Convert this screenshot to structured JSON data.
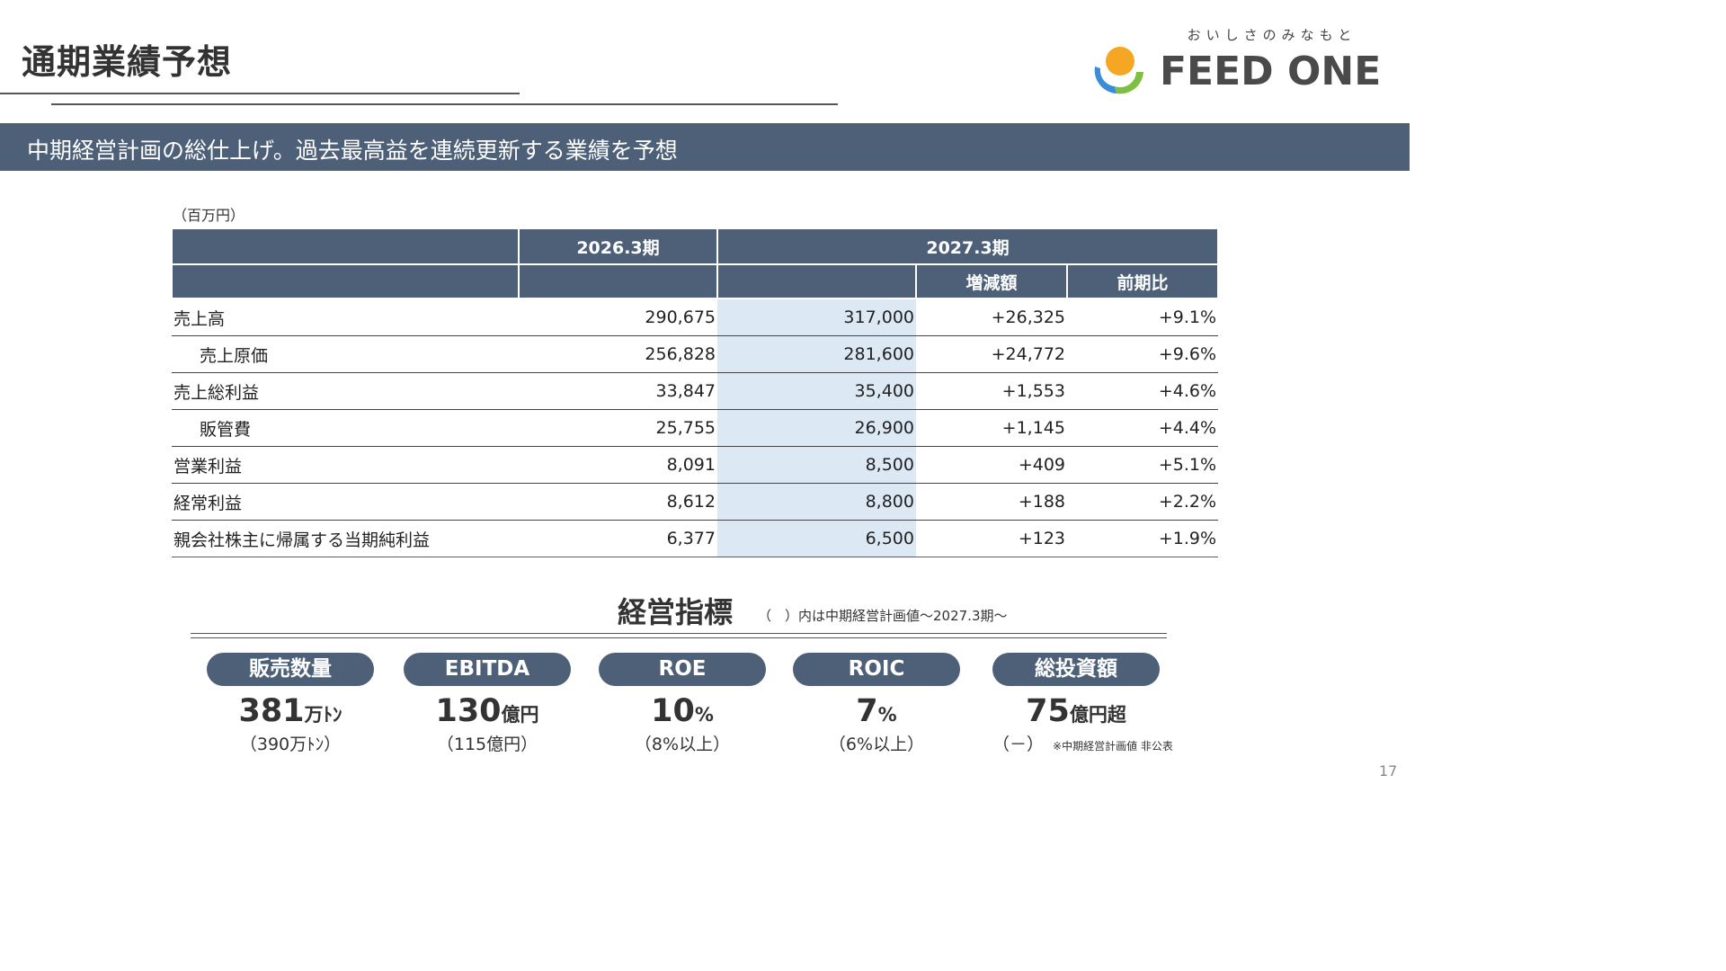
{
  "header": {
    "title": "通期業績予想",
    "logo_tagline": "おいしさのみなもと",
    "logo_name": "FEED ONE"
  },
  "banner": {
    "text": "中期経営計画の総仕上げ。過去最高益を連続更新する業績を予想"
  },
  "table": {
    "unit": "（百万円）",
    "columns": {
      "fy2026": "2026.3期",
      "fy2027": "2027.3期",
      "change": "増減額",
      "ratio": "前期比"
    },
    "rows": [
      {
        "label": "売上高",
        "fy2026": "290,675",
        "fy2027": "317,000",
        "change": "+26,325",
        "ratio": "+9.1%"
      },
      {
        "label": "売上原価",
        "fy2026": "256,828",
        "fy2027": "281,600",
        "change": "+24,772",
        "ratio": "+9.6%"
      },
      {
        "label": "売上総利益",
        "fy2026": "33,847",
        "fy2027": "35,400",
        "change": "+1,553",
        "ratio": "+4.6%"
      },
      {
        "label": "販管費",
        "fy2026": "25,755",
        "fy2027": "26,900",
        "change": "+1,145",
        "ratio": "+4.4%"
      },
      {
        "label": "営業利益",
        "fy2026": "8,091",
        "fy2027": "8,500",
        "change": "+409",
        "ratio": "+5.1%"
      },
      {
        "label": "経常利益",
        "fy2026": "8,612",
        "fy2027": "8,800",
        "change": "+188",
        "ratio": "+2.2%"
      },
      {
        "label": "親会社株主に帰属する当期純利益",
        "fy2026": "6,377",
        "fy2027": "6,500",
        "change": "+123",
        "ratio": "+1.9%"
      }
    ]
  },
  "kpis": {
    "title": "経営指標",
    "note": "（　）内は中期経営計画値～2027.3期～",
    "items": [
      {
        "label": "販売数量",
        "value": "381",
        "unit": "万ﾄﾝ",
        "target": "（390万ﾄﾝ）"
      },
      {
        "label": "EBITDA",
        "value": "130",
        "unit": "億円",
        "target": "（115億円）"
      },
      {
        "label": "ROE",
        "value": "10",
        "unit": "%",
        "target": "（8%以上）"
      },
      {
        "label": "ROIC",
        "value": "7",
        "unit": "%",
        "target": "（6%以上）"
      },
      {
        "label": "総投資額",
        "value": "75",
        "unit": "億円超",
        "target": "（－）",
        "note": "※中期経営計画値 非公表"
      }
    ]
  },
  "page_number": "17",
  "colors": {
    "header_fill": "#4d6078",
    "highlight_fill": "#dce8f4",
    "logo_orange": "#f5a623",
    "logo_blue": "#3c8dd8",
    "logo_green": "#7fbf3f"
  }
}
